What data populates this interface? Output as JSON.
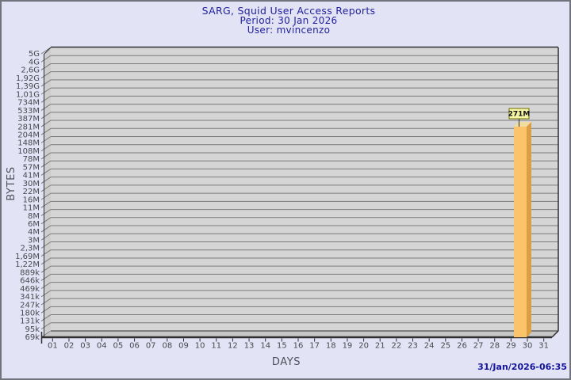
{
  "header": {
    "title": "SARG, Squid User Access Reports",
    "period_line": "Period: 30 Jan 2026",
    "user_line": "User: mvincenzo"
  },
  "footer": {
    "generated_timestamp": "31/Jan/2026-06:35"
  },
  "chart_data": {
    "type": "bar",
    "title": "SARG, Squid User Access Reports",
    "subtitle_period": "Period: 30 Jan 2026",
    "subtitle_user": "User: mvincenzo",
    "xlabel": "DAYS",
    "ylabel": "BYTES",
    "y_scale": "logarithmic-like",
    "y_tick_labels": [
      "5G",
      "4G",
      "2,6G",
      "1,92G",
      "1,39G",
      "1,01G",
      "734M",
      "533M",
      "387M",
      "281M",
      "204M",
      "148M",
      "108M",
      "78M",
      "57M",
      "41M",
      "30M",
      "22M",
      "16M",
      "11M",
      "8M",
      "6M",
      "4M",
      "3M",
      "2,3M",
      "1,69M",
      "1,22M",
      "889k",
      "646k",
      "469k",
      "341k",
      "247k",
      "180k",
      "131k",
      "95k",
      "69k"
    ],
    "x_tick_labels": [
      "01",
      "02",
      "03",
      "04",
      "05",
      "06",
      "07",
      "08",
      "09",
      "10",
      "11",
      "12",
      "13",
      "14",
      "15",
      "16",
      "17",
      "18",
      "19",
      "20",
      "21",
      "22",
      "23",
      "24",
      "25",
      "26",
      "27",
      "28",
      "29",
      "30",
      "31"
    ],
    "bars": [
      {
        "day": "30",
        "value_label": "271M",
        "value": 271,
        "unit": "M"
      }
    ],
    "legend": "none",
    "grid": "horizontal",
    "colors": {
      "background": "#E3E3F6",
      "plot_back_wall": "#D5D5D5",
      "plot_left_wall": "#CDCDCD",
      "plot_floor": "#C6C6C6",
      "gridline": "#7B7B7B",
      "edge": "#2F2F2F",
      "bar_face": "#FCC46A",
      "bar_side": "#D99F42",
      "bar_top": "#EFDC9E",
      "annotation_bg": "#F5F5A5",
      "annotation_border": "#6E6E00",
      "title_text": "#22229A",
      "timestamp_text": "#14149B"
    }
  }
}
